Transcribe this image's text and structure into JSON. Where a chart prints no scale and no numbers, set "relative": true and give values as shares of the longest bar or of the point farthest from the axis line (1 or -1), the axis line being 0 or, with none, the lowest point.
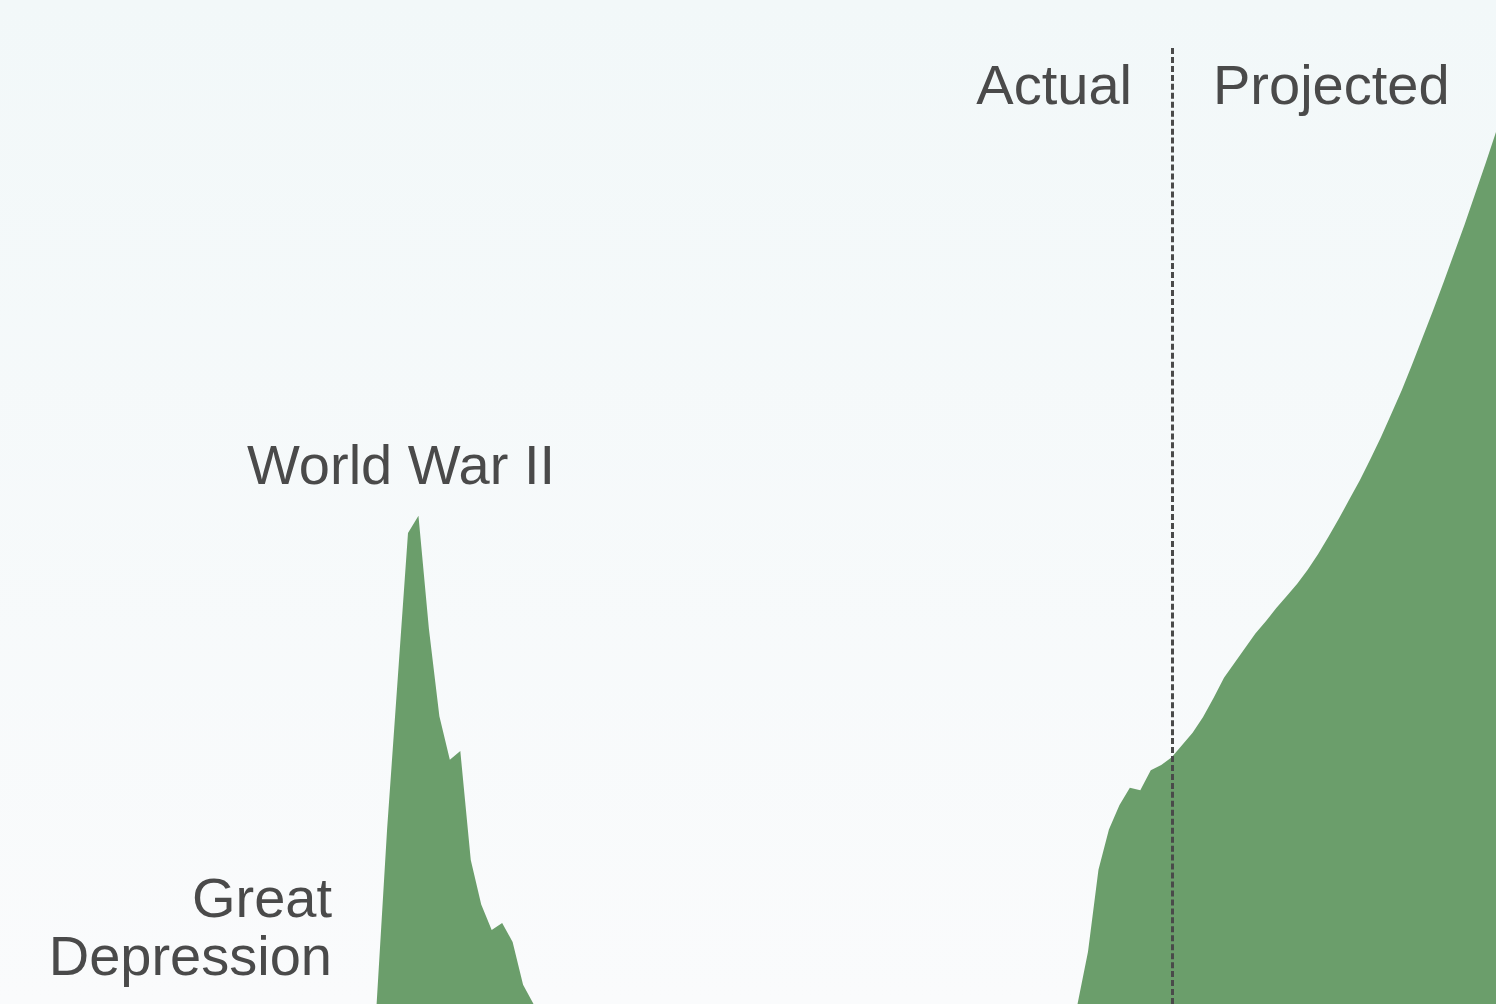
{
  "chart_data": {
    "type": "area",
    "relative": true,
    "categories": [
      null,
      null,
      null,
      null,
      null,
      null,
      null,
      null,
      null,
      null,
      null,
      null,
      null,
      null,
      null,
      null,
      null,
      null,
      null,
      null,
      null,
      null,
      null,
      null,
      null,
      null,
      null,
      null,
      null,
      null,
      null,
      null,
      null,
      null,
      null,
      null,
      null,
      null,
      null,
      null,
      null,
      null,
      null,
      null,
      null,
      null,
      null,
      null,
      null,
      null,
      null,
      null,
      null,
      null,
      null,
      null,
      null,
      null,
      null,
      null,
      null,
      null,
      null,
      null,
      null,
      null,
      null,
      null,
      null,
      null,
      null,
      null,
      null,
      null,
      null,
      null,
      null,
      null,
      null,
      null,
      null,
      null,
      null,
      null,
      null,
      null,
      null,
      null,
      null,
      null,
      null,
      null,
      null,
      null,
      null,
      null,
      null,
      null,
      null,
      null,
      null,
      null,
      null,
      null,
      null,
      null,
      null,
      null,
      null,
      null,
      null,
      null,
      null,
      null,
      null,
      null,
      null,
      null,
      null,
      null,
      null,
      null,
      null,
      null,
      null,
      null,
      null,
      null,
      null,
      null,
      null,
      null,
      null,
      null,
      null,
      null,
      null,
      null,
      null,
      null,
      null,
      null,
      null,
      null
    ],
    "series": [
      {
        "color": "#6b9e6b",
        "values": [
          0,
          0,
          0,
          0,
          0,
          0,
          0,
          0,
          0,
          0,
          0,
          0,
          0,
          0,
          0,
          0,
          0,
          0,
          0,
          0,
          0,
          0,
          0,
          0,
          0,
          0,
          0,
          0,
          0,
          0,
          0,
          0,
          0,
          0,
          0,
          0,
          0,
          0.2,
          0.37,
          0.54,
          0.56,
          0.43,
          0.33,
          0.28,
          0.29,
          0.165,
          0.114,
          0.085,
          0.093,
          0.071,
          0.022,
          0,
          0,
          0,
          0,
          0,
          0,
          0,
          0,
          0,
          0,
          0,
          0,
          0,
          0,
          0,
          0,
          0,
          0,
          0,
          0,
          0,
          0,
          0,
          0,
          0,
          0,
          0,
          0,
          0,
          0,
          0,
          0,
          0,
          0,
          0,
          0,
          0,
          0,
          0,
          0,
          0,
          0,
          0,
          0,
          0,
          0,
          0,
          0,
          0,
          0,
          0,
          0,
          0,
          0.06,
          0.154,
          0.2,
          0.228,
          0.248,
          0.245,
          0.268,
          0.274,
          0.283,
          0.297,
          0.311,
          0.329,
          0.351,
          0.374,
          0.391,
          0.408,
          0.425,
          0.439,
          0.454,
          0.468,
          0.482,
          0.498,
          0.516,
          0.536,
          0.557,
          0.579,
          0.601,
          0.625,
          0.65,
          0.677,
          0.704,
          0.734,
          0.765,
          0.796,
          0.828,
          0.861,
          0.894,
          0.929,
          0.964,
          1
        ]
      }
    ],
    "annotations": [
      "World War II",
      "Great Depression",
      "Actual",
      "Projected"
    ]
  }
}
